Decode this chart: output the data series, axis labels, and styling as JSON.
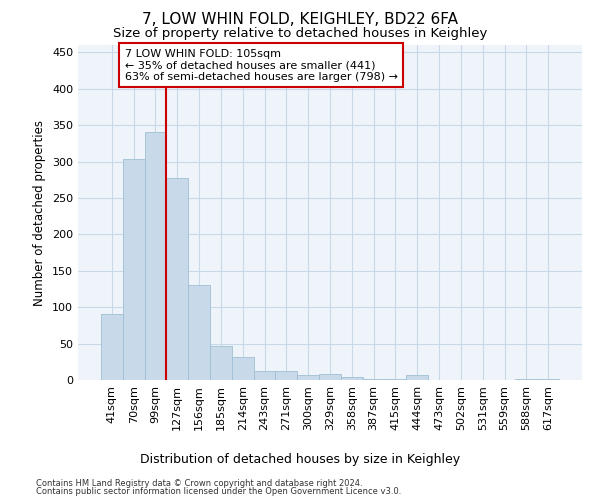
{
  "title": "7, LOW WHIN FOLD, KEIGHLEY, BD22 6FA",
  "subtitle": "Size of property relative to detached houses in Keighley",
  "xlabel_bottom": "Distribution of detached houses by size in Keighley",
  "ylabel": "Number of detached properties",
  "footer_line1": "Contains HM Land Registry data © Crown copyright and database right 2024.",
  "footer_line2": "Contains public sector information licensed under the Open Government Licence v3.0.",
  "categories": [
    "41sqm",
    "70sqm",
    "99sqm",
    "127sqm",
    "156sqm",
    "185sqm",
    "214sqm",
    "243sqm",
    "271sqm",
    "300sqm",
    "329sqm",
    "358sqm",
    "387sqm",
    "415sqm",
    "444sqm",
    "473sqm",
    "502sqm",
    "531sqm",
    "559sqm",
    "588sqm",
    "617sqm"
  ],
  "values": [
    90,
    303,
    341,
    278,
    131,
    47,
    31,
    13,
    13,
    7,
    8,
    4,
    2,
    1,
    7,
    0,
    0,
    0,
    0,
    2,
    2
  ],
  "bar_color": "#c8daea",
  "bar_edge_color": "#a0bfd4",
  "grid_color": "#c8d8e8",
  "background_color": "#ffffff",
  "plot_bg_color": "#eef4f9",
  "property_line_x": 2.5,
  "property_line_color": "#cc0000",
  "annotation_text": "7 LOW WHIN FOLD: 105sqm\n← 35% of detached houses are smaller (441)\n63% of semi-detached houses are larger (798) →",
  "annotation_box_color": "#ffffff",
  "annotation_box_edge": "#cc0000",
  "ylim": [
    0,
    460
  ],
  "yticks": [
    0,
    50,
    100,
    150,
    200,
    250,
    300,
    350,
    400,
    450
  ],
  "title_fontsize": 11,
  "subtitle_fontsize": 9.5,
  "ylabel_fontsize": 8.5,
  "xlabel_fontsize": 9,
  "tick_fontsize": 8,
  "footer_fontsize": 6,
  "annotation_fontsize": 8
}
